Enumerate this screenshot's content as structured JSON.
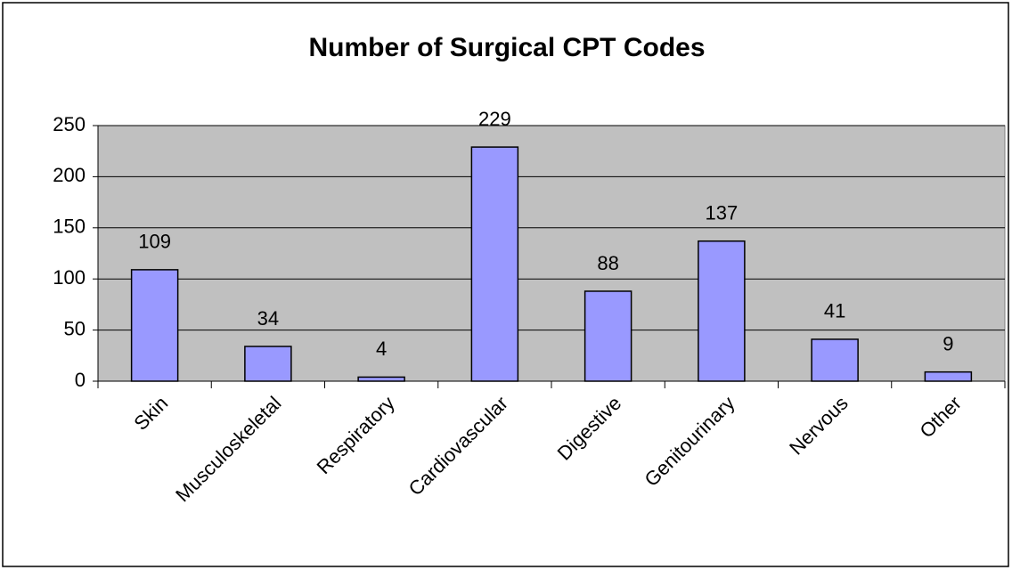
{
  "chart_data": {
    "type": "bar",
    "title": "Number of Surgical CPT Codes",
    "categories": [
      "Skin",
      "Musculoskeletal",
      "Respiratory",
      "Cardiovascular",
      "Digestive",
      "Genitourinary",
      "Nervous",
      "Other"
    ],
    "values": [
      109,
      34,
      4,
      229,
      88,
      137,
      41,
      9
    ],
    "color": "#9999ff",
    "ylim": [
      0,
      250
    ],
    "yticks": [
      0,
      50,
      100,
      150,
      200,
      250
    ],
    "grid": true
  }
}
